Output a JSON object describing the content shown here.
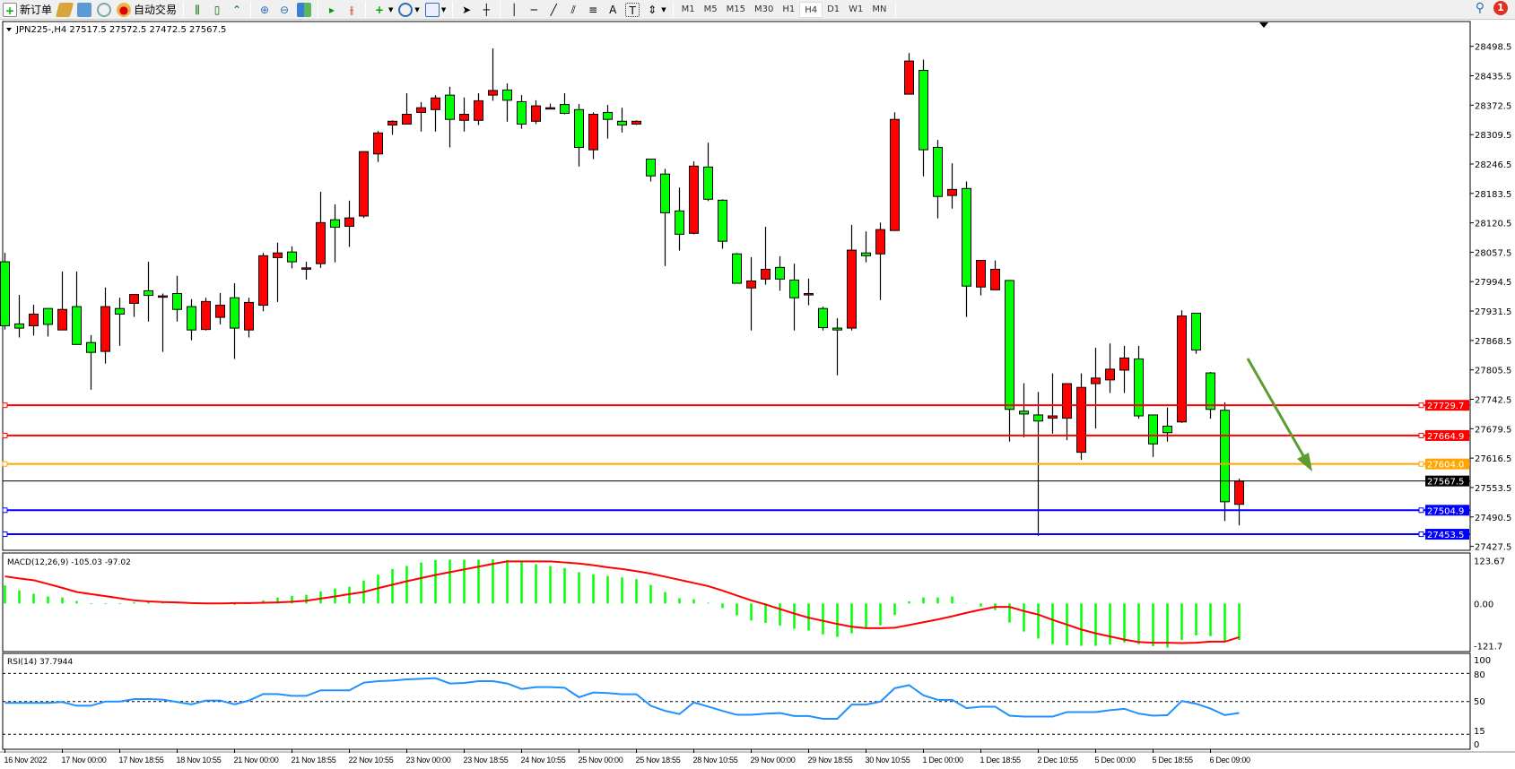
{
  "toolbar": {
    "new_order_label": "新订单",
    "auto_trading_label": "自动交易",
    "timeframes": [
      "M1",
      "M5",
      "M15",
      "M30",
      "H1",
      "H4",
      "D1",
      "W1",
      "MN"
    ],
    "active_timeframe": "H4",
    "notification_count": "1",
    "icons": [
      "new-order-icon",
      "gold-icon",
      "market-watch-icon",
      "signal-icon",
      "auto-trading-icon",
      "bar-chart-icon",
      "candlestick-icon",
      "line-chart-icon",
      "zoom-in-icon",
      "zoom-out-icon",
      "tile-windows-icon",
      "autoscroll-icon",
      "chart-shift-icon",
      "indicators-icon",
      "periods-icon",
      "templates-icon",
      "cursor-icon",
      "crosshair-icon",
      "vertical-line-icon",
      "horizontal-line-icon",
      "trendline-icon",
      "equidistant-channel-icon",
      "fibonacci-icon",
      "text-icon",
      "text-label-icon",
      "arrows-icon",
      "search-icon",
      "notification-icon"
    ],
    "text_tool_label": "A"
  },
  "chart": {
    "header": "JPN225-,H4  27517.5 27572.5 27472.5 27567.5",
    "colors": {
      "bull": "#ff0000",
      "bear": "#00ff00",
      "macd_hist": "#00ff00",
      "macd_signal": "#ff0000",
      "rsi": "#1e90ff",
      "arrow": "#5a9e2f"
    },
    "price_ticks": [
      "28498.5",
      "28435.5",
      "28372.5",
      "28309.5",
      "28246.5",
      "28183.5",
      "28120.5",
      "28057.5",
      "27994.5",
      "27931.5",
      "27868.5",
      "27805.5",
      "27742.5",
      "27679.5",
      "27616.5",
      "27553.5",
      "27490.5",
      "27427.5"
    ],
    "levels": [
      {
        "price": "27729.7",
        "color": "#ff0000"
      },
      {
        "price": "27664.9",
        "color": "#ff0000"
      },
      {
        "price": "27604.0",
        "color": "#ffa500"
      },
      {
        "price": "27567.5",
        "color": "#000000"
      },
      {
        "price": "27504.9",
        "color": "#0000ff"
      },
      {
        "price": "27453.5",
        "color": "#0000ff"
      }
    ],
    "time_labels": [
      "16 Nov 2022",
      "17 Nov 00:00",
      "17 Nov 18:55",
      "18 Nov 10:55",
      "21 Nov 00:00",
      "21 Nov 18:55",
      "22 Nov 10:55",
      "23 Nov 00:00",
      "23 Nov 18:55",
      "24 Nov 10:55",
      "25 Nov 00:00",
      "25 Nov 18:55",
      "28 Nov 10:55",
      "29 Nov 00:00",
      "29 Nov 18:55",
      "30 Nov 10:55",
      "1 Dec 00:00",
      "1 Dec 18:55",
      "2 Dec 10:55",
      "5 Dec 00:00",
      "5 Dec 18:55",
      "6 Dec 09:00"
    ],
    "macd": {
      "label": "MACD(12,26,9) -105.03 -97.02",
      "ticks": [
        "123.67",
        "0.00",
        "-121.7"
      ]
    },
    "rsi": {
      "label": "RSI(14) 37.7944",
      "ticks": [
        "100",
        "80",
        "50",
        "15",
        "0"
      ],
      "levels": [
        80,
        50,
        15
      ]
    }
  },
  "chart_data": {
    "type": "candlestick",
    "symbol": "JPN225-",
    "timeframe": "H4",
    "ylim": [
      27427.5,
      28498.5
    ],
    "ohlc": [
      [
        28037,
        28056,
        27892,
        27900
      ],
      [
        27904,
        27966,
        27875,
        27895
      ],
      [
        27900,
        27945,
        27879,
        27925
      ],
      [
        27937,
        27937,
        27877,
        27903
      ],
      [
        27891,
        28016,
        27891,
        27935
      ],
      [
        27941,
        28016,
        27860,
        27860
      ],
      [
        27864,
        27880,
        27763,
        27843
      ],
      [
        27845,
        27982,
        27819,
        27941
      ],
      [
        27937,
        27960,
        27857,
        27925
      ],
      [
        27948,
        27967,
        27919,
        27967
      ],
      [
        27975,
        28037,
        27909,
        27965
      ],
      [
        27964,
        27969,
        27844,
        27964
      ],
      [
        27969,
        28007,
        27909,
        27935
      ],
      [
        27941,
        27957,
        27869,
        27891
      ],
      [
        27892,
        27960,
        27890,
        27952
      ],
      [
        27918,
        27970,
        27903,
        27944
      ],
      [
        27960,
        27991,
        27829,
        27895
      ],
      [
        27891,
        27960,
        27875,
        27950
      ],
      [
        27944,
        28056,
        27931,
        28050
      ],
      [
        28046,
        28078,
        27951,
        28056
      ],
      [
        28058,
        28070,
        28023,
        28037
      ],
      [
        28024,
        28037,
        27999,
        28024
      ],
      [
        28033,
        28187,
        28024,
        28121
      ],
      [
        28127,
        28160,
        28036,
        28111
      ],
      [
        28113,
        28168,
        28069,
        28131
      ],
      [
        28135,
        28273,
        28131,
        28273
      ],
      [
        28268,
        28317,
        28251,
        28313
      ],
      [
        28330,
        28340,
        28309,
        28338
      ],
      [
        28332,
        28398,
        28332,
        28353
      ],
      [
        28357,
        28379,
        28316,
        28367
      ],
      [
        28363,
        28394,
        28316,
        28388
      ],
      [
        28394,
        28412,
        28282,
        28342
      ],
      [
        28340,
        28389,
        28316,
        28353
      ],
      [
        28340,
        28398,
        28330,
        28382
      ],
      [
        28394,
        28494,
        28382,
        28404
      ],
      [
        28405,
        28419,
        28337,
        28383
      ],
      [
        28380,
        28394,
        28322,
        28332
      ],
      [
        28338,
        28383,
        28332,
        28371
      ],
      [
        28367,
        28376,
        28367,
        28367
      ],
      [
        28374,
        28398,
        28353,
        28355
      ],
      [
        28363,
        28375,
        28241,
        28282
      ],
      [
        28277,
        28357,
        28257,
        28353
      ],
      [
        28357,
        28373,
        28301,
        28342
      ],
      [
        28338,
        28367,
        28314,
        28330
      ],
      [
        28332,
        28340,
        28330,
        28338
      ],
      [
        28257,
        28257,
        28209,
        28221
      ],
      [
        28225,
        28236,
        28028,
        28142
      ],
      [
        28146,
        28196,
        28061,
        28096
      ],
      [
        28098,
        28252,
        28096,
        28242
      ],
      [
        28240,
        28292,
        28167,
        28171
      ],
      [
        28169,
        28171,
        28065,
        28081
      ],
      [
        28054,
        28056,
        27991,
        27991
      ],
      [
        27981,
        28047,
        27890,
        27996
      ],
      [
        28000,
        28112,
        27988,
        28021
      ],
      [
        28025,
        28049,
        27975,
        28000
      ],
      [
        27998,
        28033,
        27890,
        27960
      ],
      [
        27966,
        28001,
        27944,
        27969
      ],
      [
        27937,
        27941,
        27890,
        27896
      ],
      [
        27895,
        27916,
        27794,
        27891
      ],
      [
        27895,
        28116,
        27890,
        28062
      ],
      [
        28056,
        28102,
        28036,
        28050
      ],
      [
        28054,
        28121,
        27955,
        28106
      ],
      [
        28104,
        28357,
        28104,
        28342
      ],
      [
        28396,
        28484,
        28396,
        28467
      ],
      [
        28447,
        28470,
        28220,
        28277
      ],
      [
        28282,
        28298,
        28130,
        28177
      ],
      [
        28179,
        28248,
        28151,
        28192
      ],
      [
        28194,
        28209,
        27919,
        27985
      ],
      [
        27983,
        28040,
        27965,
        28040
      ],
      [
        27977,
        28040,
        27977,
        28021
      ],
      [
        27997,
        27997,
        27652,
        27721
      ],
      [
        27717,
        27777,
        27661,
        27711
      ],
      [
        27709,
        27758,
        27450,
        27696
      ],
      [
        27702,
        27798,
        27669,
        27707
      ],
      [
        27702,
        27776,
        27655,
        27776
      ],
      [
        27629,
        27798,
        27613,
        27768
      ],
      [
        27776,
        27853,
        27680,
        27788
      ],
      [
        27784,
        27862,
        27756,
        27807
      ],
      [
        27805,
        27857,
        27756,
        27831
      ],
      [
        27829,
        27857,
        27701,
        27707
      ],
      [
        27709,
        27709,
        27619,
        27647
      ],
      [
        27685,
        27725,
        27652,
        27671
      ],
      [
        27694,
        27933,
        27692,
        27921
      ],
      [
        27927,
        27927,
        27840,
        27848
      ],
      [
        27799,
        27801,
        27701,
        27721
      ],
      [
        27719,
        27736,
        27482,
        27523
      ],
      [
        27517.5,
        27572.5,
        27472.5,
        27567.5
      ]
    ],
    "macd_hist": [
      52,
      38,
      28,
      20,
      17,
      7,
      -2,
      -2,
      -2,
      3,
      4,
      2,
      1,
      0,
      0,
      0,
      -4,
      -2,
      9,
      17,
      22,
      25,
      35,
      43,
      48,
      66,
      83,
      99,
      108,
      118,
      125,
      126,
      126,
      126,
      127,
      125,
      120,
      113,
      108,
      102,
      90,
      84,
      79,
      75,
      70,
      53,
      33,
      15,
      12,
      2,
      -13,
      -34,
      -49,
      -56,
      -64,
      -73,
      -78,
      -89,
      -96,
      -86,
      -71,
      -63,
      -33,
      6,
      17,
      17,
      20,
      1,
      -9,
      -19,
      -55,
      -81,
      -101,
      -117,
      -120,
      -122,
      -122,
      -118,
      -112,
      -117,
      -123,
      -127,
      -105,
      -92,
      -94,
      -108,
      -105.03
    ],
    "macd_signal": [
      78,
      72,
      67,
      56,
      45,
      33,
      27,
      21,
      15,
      9,
      6,
      4,
      3,
      1,
      0,
      0,
      1,
      1,
      2,
      3,
      5,
      8,
      14,
      20,
      27,
      33,
      44,
      54,
      64,
      73,
      82,
      90,
      98,
      106,
      114,
      121,
      121,
      121,
      121,
      118,
      115,
      110,
      104,
      99,
      93,
      86,
      77,
      68,
      59,
      50,
      37,
      23,
      9,
      -3,
      -16,
      -29,
      -41,
      -50,
      -59,
      -67,
      -71,
      -71,
      -70,
      -62,
      -54,
      -46,
      -37,
      -27,
      -18,
      -10,
      -10,
      -22,
      -32,
      -47,
      -61,
      -75,
      -86,
      -95,
      -104,
      -111,
      -113,
      -113,
      -114,
      -113,
      -110,
      -110,
      -97.02
    ],
    "macd_ylim": [
      -121.7,
      123.67
    ],
    "rsi": [
      48.5,
      48.5,
      48.5,
      48.5,
      49.5,
      45.5,
      45.5,
      50,
      50,
      52.6,
      52.6,
      52,
      49.5,
      47,
      51,
      51,
      47,
      51,
      58,
      58,
      56,
      56,
      61.9,
      61.9,
      61.9,
      70.1,
      71.7,
      72.3,
      73.6,
      74.2,
      74.9,
      69.2,
      69.8,
      71.7,
      71.7,
      69.2,
      63.4,
      65.4,
      65.4,
      64.7,
      54.5,
      59.6,
      59,
      57.7,
      57.7,
      45.5,
      40,
      36.6,
      49,
      44.6,
      40,
      35.8,
      35.8,
      37.1,
      37.7,
      34.5,
      34.5,
      31.6,
      31.6,
      46.7,
      46.7,
      49.9,
      64.2,
      67.5,
      56.6,
      51.8,
      51.8,
      42.9,
      44.5,
      44.5,
      34.9,
      33.9,
      33.9,
      33.9,
      38.7,
      38.7,
      38.7,
      40.7,
      42.2,
      37.1,
      34.9,
      35.5,
      50.5,
      47.6,
      42.5,
      35.5,
      37.79
    ],
    "rsi_ylim": [
      0,
      100
    ]
  }
}
